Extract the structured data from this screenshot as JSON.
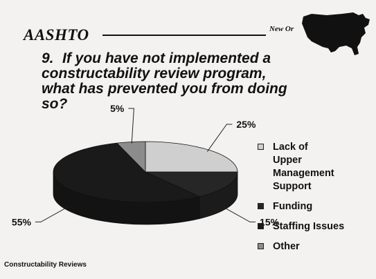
{
  "header": {
    "brand": "AASHTO",
    "subtitle": "New Or"
  },
  "question": {
    "number": "9.",
    "text": "If you have not implemented a constructability review program, what has prevented you from doing so?"
  },
  "colors": {
    "background": "#f3f2f0",
    "light_gray": "#cfcfcf",
    "dark": "#232323",
    "medium_gray": "#8c8c8c"
  },
  "chart_data": {
    "type": "pie",
    "title": "",
    "slices": [
      {
        "label": "Lack of Upper Management Support",
        "value": 25,
        "display": "25%",
        "color": "#cfcfcf"
      },
      {
        "label": "Funding",
        "value": 15,
        "display": "15%",
        "color": "#262626"
      },
      {
        "label": "Staffing Issues",
        "value": 55,
        "display": "55%",
        "color": "#1a1a1a"
      },
      {
        "label": "Other",
        "value": 5,
        "display": "5%",
        "color": "#8c8c8c"
      }
    ],
    "legend": {
      "placement": "right",
      "items": [
        {
          "lines": [
            "Lack of",
            "Upper",
            "Management",
            "Support"
          ],
          "color": "#cfcfcf"
        },
        {
          "lines": [
            "Funding"
          ],
          "color": "#262626"
        },
        {
          "lines": [
            "Staffing Issues"
          ],
          "color": "#1a1a1a"
        },
        {
          "lines": [
            "Other"
          ],
          "color": "#8c8c8c"
        }
      ]
    },
    "style": "3d-tilted"
  },
  "footer": {
    "text": "Constructability Reviews"
  }
}
